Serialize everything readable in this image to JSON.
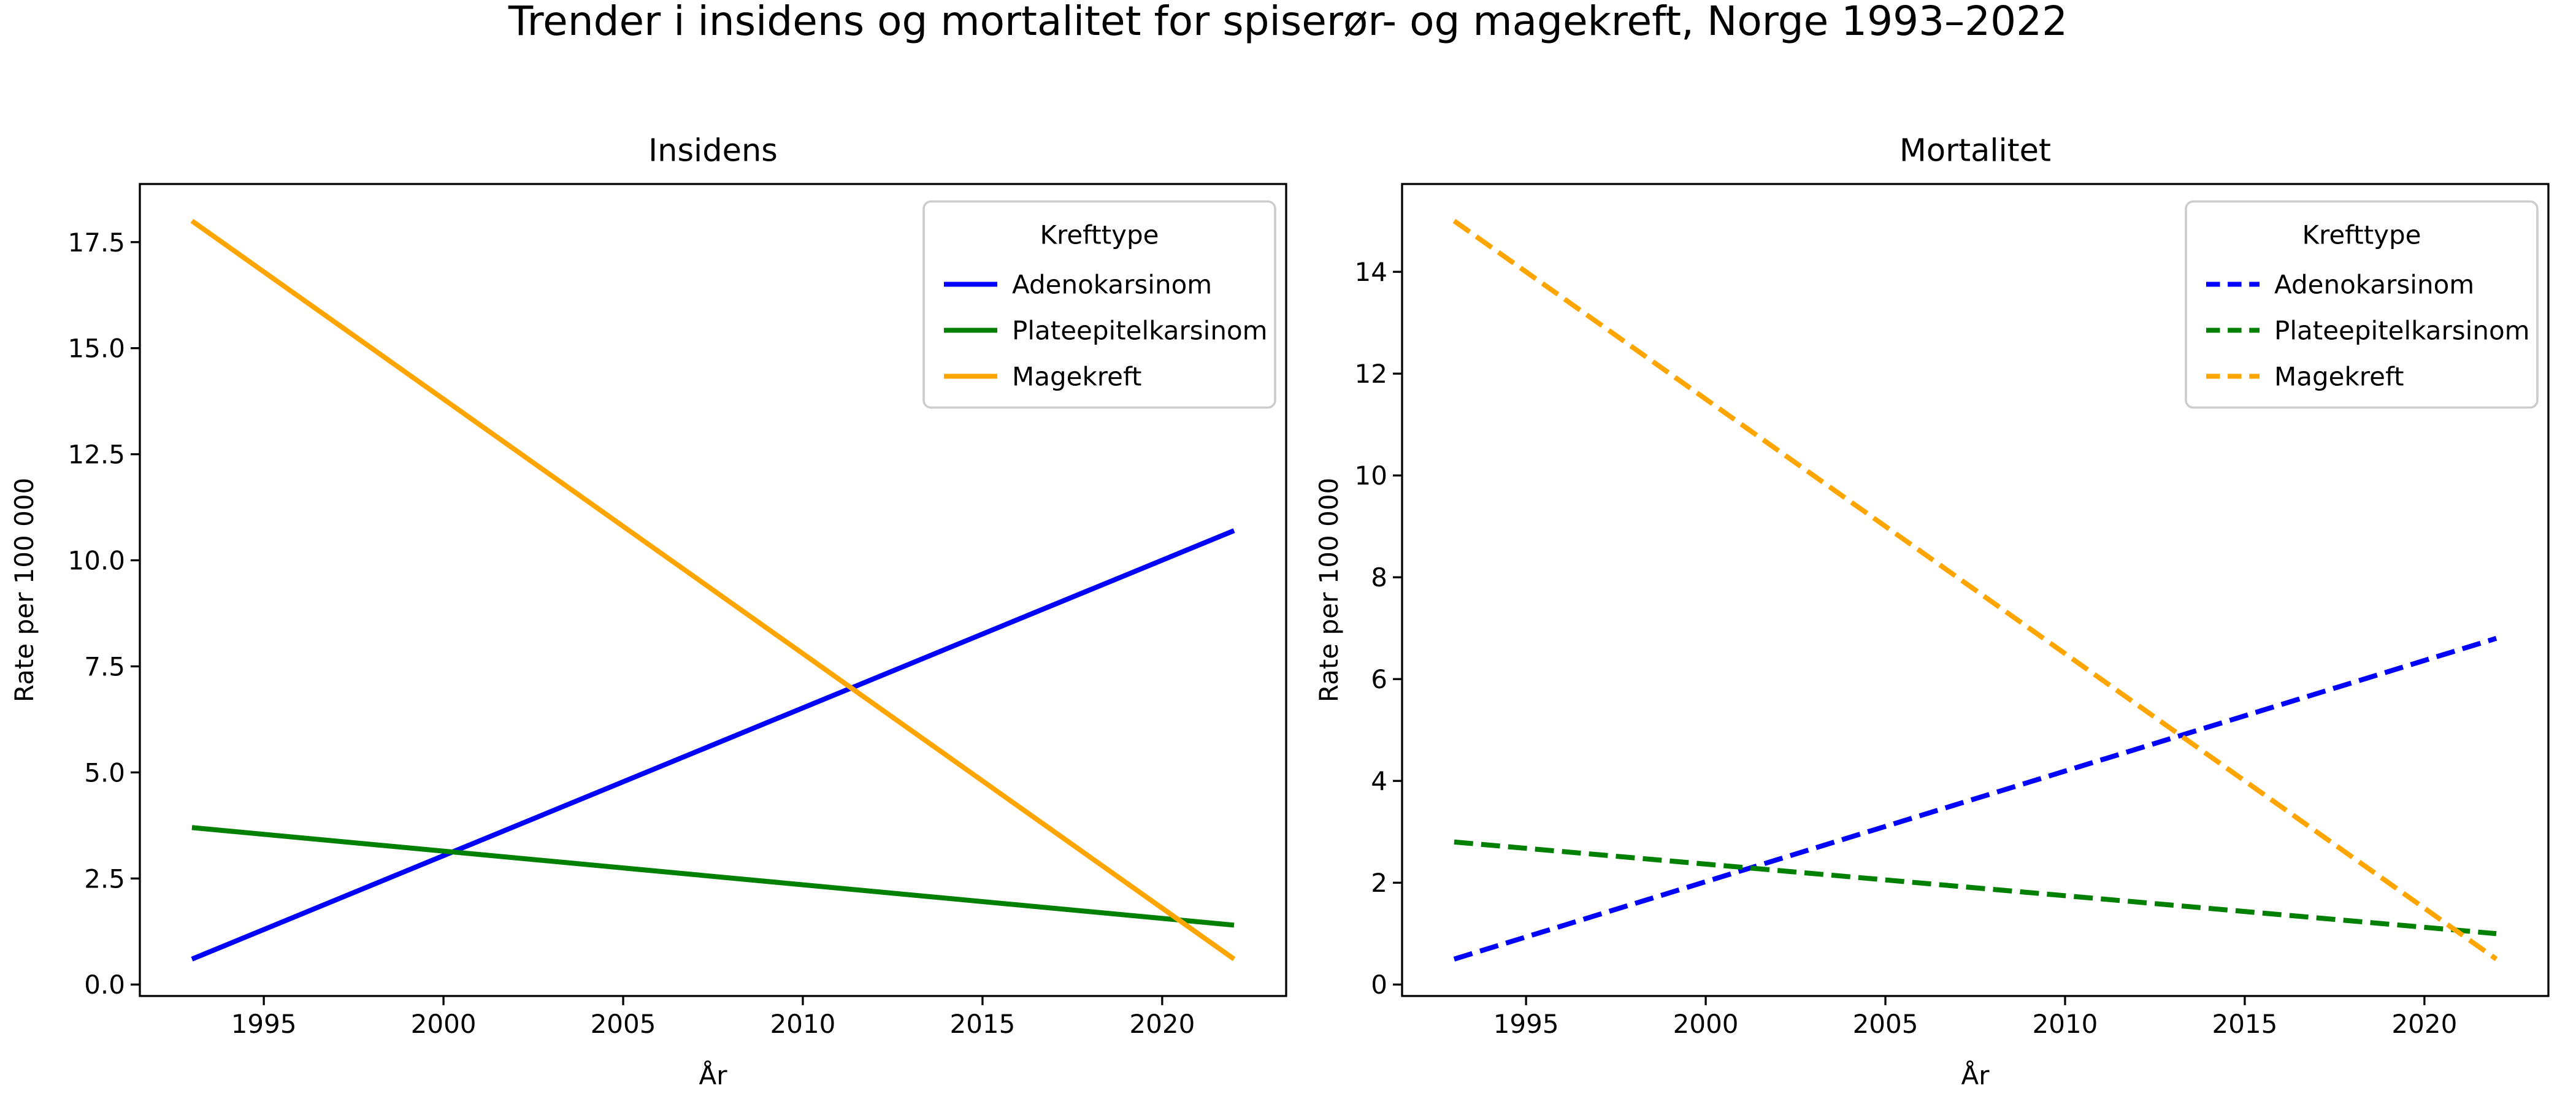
{
  "figure": {
    "suptitle": "Trender i insidens og mortalitet for spiserør- og magekreft, Norge 1993–2022",
    "background_color": "#ffffff",
    "text_color": "#000000",
    "spine_color": "#000000",
    "legend_edge_color": "#cccccc",
    "legend_face_color": "#ffffff"
  },
  "chart_data": [
    {
      "id": "insidens",
      "type": "line",
      "title": "Insidens",
      "xlabel": "År",
      "ylabel": "Rate per 100 000",
      "grid": false,
      "legend_title": "Krefttype",
      "legend_position": "upper right",
      "x": [
        1993,
        2022
      ],
      "xlim": [
        1991.55,
        2023.45
      ],
      "ylim": [
        -0.27,
        18.87
      ],
      "xtick_values": [
        1995,
        2000,
        2005,
        2010,
        2015,
        2020
      ],
      "xtick_labels": [
        "1995",
        "2000",
        "2005",
        "2010",
        "2015",
        "2020"
      ],
      "ytick_values": [
        0,
        2.5,
        5,
        7.5,
        10,
        12.5,
        15,
        17.5
      ],
      "ytick_labels": [
        "0.0",
        "2.5",
        "5.0",
        "7.5",
        "10.0",
        "12.5",
        "15.0",
        "17.5"
      ],
      "series": [
        {
          "name": "Adenokarsinom",
          "color": "#0000ff",
          "line_style": "solid",
          "values": [
            0.6,
            10.7
          ]
        },
        {
          "name": "Plateepitelkarsinom",
          "color": "#008000",
          "line_style": "solid",
          "values": [
            3.7,
            1.4
          ]
        },
        {
          "name": "Magekreft",
          "color": "#ffa500",
          "line_style": "solid",
          "values": [
            18.0,
            0.6
          ]
        }
      ]
    },
    {
      "id": "mortalitet",
      "type": "line",
      "title": "Mortalitet",
      "xlabel": "År",
      "ylabel": "Rate per 100 000",
      "grid": false,
      "legend_title": "Krefttype",
      "legend_position": "upper right",
      "x": [
        1993,
        2022
      ],
      "xlim": [
        1991.55,
        2023.45
      ],
      "ylim": [
        -0.225,
        15.725
      ],
      "xtick_values": [
        1995,
        2000,
        2005,
        2010,
        2015,
        2020
      ],
      "xtick_labels": [
        "1995",
        "2000",
        "2005",
        "2010",
        "2015",
        "2020"
      ],
      "ytick_values": [
        0,
        2,
        4,
        6,
        8,
        10,
        12,
        14
      ],
      "ytick_labels": [
        "0",
        "2",
        "4",
        "6",
        "8",
        "10",
        "12",
        "14"
      ],
      "series": [
        {
          "name": "Adenokarsinom",
          "color": "#0000ff",
          "line_style": "dashed",
          "values": [
            0.5,
            6.8
          ]
        },
        {
          "name": "Plateepitelkarsinom",
          "color": "#008000",
          "line_style": "dashed",
          "values": [
            2.8,
            1.0
          ]
        },
        {
          "name": "Magekreft",
          "color": "#ffa500",
          "line_style": "dashed",
          "values": [
            15.0,
            0.5
          ]
        }
      ]
    }
  ]
}
